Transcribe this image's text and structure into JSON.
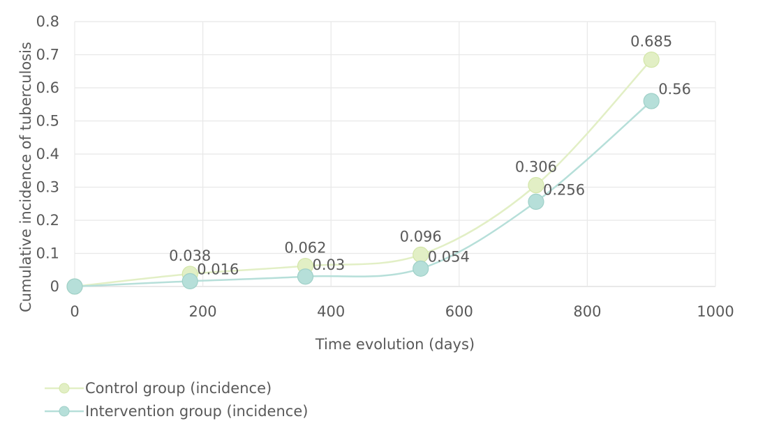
{
  "chart_data": {
    "type": "line",
    "xlabel": "Time evolution (days)",
    "ylabel": "Cumulative incidence of tuberculosis",
    "xlim": [
      0,
      1000
    ],
    "ylim": [
      0,
      0.8
    ],
    "xticks": [
      0,
      200,
      400,
      600,
      800,
      1000
    ],
    "yticks": [
      0,
      0.1,
      0.2,
      0.3,
      0.4,
      0.5,
      0.6,
      0.7,
      0.8
    ],
    "xtick_labels": [
      "0",
      "200",
      "400",
      "600",
      "800",
      "1000"
    ],
    "ytick_labels": [
      "0",
      "0.1",
      "0.2",
      "0.3",
      "0.4",
      "0.5",
      "0.6",
      "0.7",
      "0.8"
    ],
    "grid": true,
    "smooth": true,
    "legend_position": "bottom-left",
    "series": [
      {
        "name": "Control group (incidence)",
        "color": "#e2efc5",
        "marker_color": "#e2efc5",
        "x": [
          0,
          180,
          360,
          540,
          720,
          900
        ],
        "y": [
          0,
          0.038,
          0.062,
          0.096,
          0.306,
          0.685
        ],
        "labels": [
          "",
          "0.038",
          "0.062",
          "0.096",
          "0.306",
          "0.685"
        ]
      },
      {
        "name": "Intervention group (incidence)",
        "color": "#b6dfd9",
        "marker_color": "#b6dfd9",
        "x": [
          0,
          180,
          360,
          540,
          720,
          900
        ],
        "y": [
          0,
          0.016,
          0.03,
          0.054,
          0.256,
          0.56
        ],
        "labels": [
          "0",
          "0.016",
          "0.03",
          "0.054",
          "0.256",
          "0.56"
        ]
      }
    ]
  }
}
